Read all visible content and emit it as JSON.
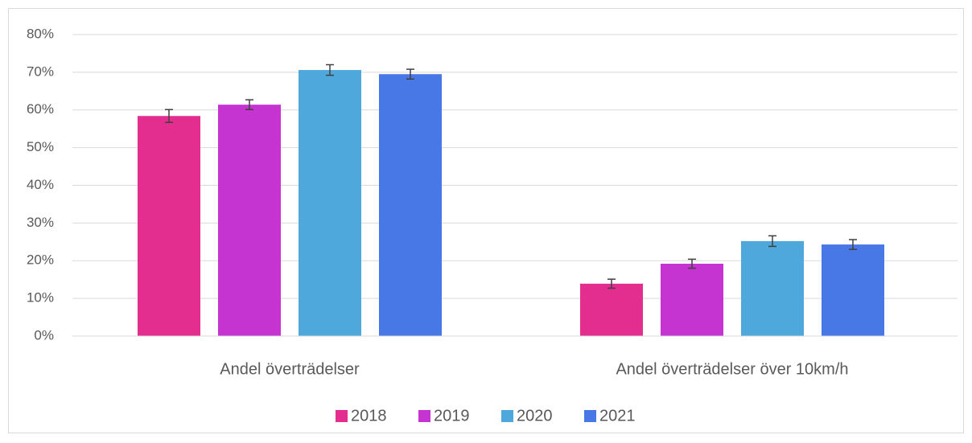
{
  "chart_data": {
    "type": "bar",
    "categories": [
      "Andel överträdelser",
      "Andel överträdelser över 10km/h"
    ],
    "series": [
      {
        "name": "2018",
        "color": "#e32d8f",
        "values": [
          58.4,
          13.9
        ],
        "errors": [
          1.7,
          1.2
        ]
      },
      {
        "name": "2019",
        "color": "#c533d0",
        "values": [
          61.4,
          19.2
        ],
        "errors": [
          1.3,
          1.2
        ]
      },
      {
        "name": "2020",
        "color": "#4fa8dc",
        "values": [
          70.6,
          25.2
        ],
        "errors": [
          1.4,
          1.4
        ]
      },
      {
        "name": "2021",
        "color": "#4877e6",
        "values": [
          69.5,
          24.3
        ],
        "errors": [
          1.3,
          1.3
        ]
      }
    ],
    "ylim": [
      0,
      80
    ],
    "yticks": [
      {
        "value": 0,
        "label": "0%"
      },
      {
        "value": 10,
        "label": "10%"
      },
      {
        "value": 20,
        "label": "20%"
      },
      {
        "value": 30,
        "label": "30%"
      },
      {
        "value": 40,
        "label": "40%"
      },
      {
        "value": 50,
        "label": "50%"
      },
      {
        "value": 60,
        "label": "60%"
      },
      {
        "value": 70,
        "label": "70%"
      },
      {
        "value": 80,
        "label": "80%"
      }
    ],
    "grid": true,
    "legend": "bottom"
  }
}
